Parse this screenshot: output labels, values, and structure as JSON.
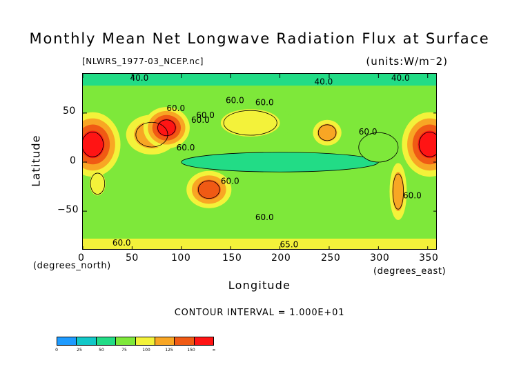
{
  "chart_data": {
    "type": "heatmap",
    "title": "Monthly Mean Net Longwave Radiation Flux at Surface",
    "file_label": "[NLWRS_1977-03_NCEP.nc]",
    "units_label": "(units:W/m⁻2)",
    "xlabel": "Longitude",
    "ylabel": "Latitude",
    "x_unit_label": "(degrees_east)",
    "y_unit_label": "(degrees_north)",
    "xlim": [
      0,
      360
    ],
    "ylim": [
      -90,
      90
    ],
    "x_ticks": [
      "0",
      "50",
      "100",
      "150",
      "200",
      "250",
      "300",
      "350"
    ],
    "y_ticks": [
      "50",
      "0",
      "−50"
    ],
    "contour_interval_text": "CONTOUR INTERVAL = 1.000E+01",
    "contour_labels": [
      {
        "text": "40.0",
        "lon": 48,
        "lat": 83
      },
      {
        "text": "40.0",
        "lon": 235,
        "lat": 79
      },
      {
        "text": "40.0",
        "lon": 313,
        "lat": 83
      },
      {
        "text": "60.0",
        "lon": 85,
        "lat": 52
      },
      {
        "text": "60.0",
        "lon": 145,
        "lat": 60
      },
      {
        "text": "60.0",
        "lon": 175,
        "lat": 58
      },
      {
        "text": "60.0",
        "lon": 115,
        "lat": 45
      },
      {
        "text": "60.0",
        "lon": 110,
        "lat": 40
      },
      {
        "text": "60.0",
        "lon": 95,
        "lat": 12
      },
      {
        "text": "60.0",
        "lon": 280,
        "lat": 28
      },
      {
        "text": "60.0",
        "lon": 140,
        "lat": -22
      },
      {
        "text": "60.0",
        "lon": 325,
        "lat": -37
      },
      {
        "text": "60.0",
        "lon": 175,
        "lat": -59
      },
      {
        "text": "60.0",
        "lon": 30,
        "lat": -85
      },
      {
        "text": "65.0",
        "lon": 200,
        "lat": -87
      }
    ],
    "colorbar": {
      "levels": [
        "0",
        "25",
        "50",
        "75",
        "100",
        "125",
        "150",
        "∞"
      ],
      "colors": [
        "#1e9bff",
        "#12c8c8",
        "#22dc86",
        "#7ee83a",
        "#f3f23a",
        "#f8a624",
        "#f05a14",
        "#ff1414"
      ]
    },
    "field_regions": [
      {
        "lon": 10,
        "lat": 18,
        "rx": 12,
        "ry": 14,
        "level": 7
      },
      {
        "lon": 352,
        "lat": 18,
        "rx": 12,
        "ry": 14,
        "level": 7
      },
      {
        "lon": 85,
        "lat": 35,
        "rx": 10,
        "ry": 9,
        "level": 7
      },
      {
        "lon": 70,
        "lat": 28,
        "rx": 18,
        "ry": 14,
        "level": 5
      },
      {
        "lon": 128,
        "lat": -28,
        "rx": 12,
        "ry": 10,
        "level": 6
      },
      {
        "lon": 248,
        "lat": 30,
        "rx": 10,
        "ry": 9,
        "level": 5
      },
      {
        "lon": 320,
        "lat": -30,
        "rx": 6,
        "ry": 20,
        "level": 5
      },
      {
        "lon": 15,
        "lat": -22,
        "rx": 8,
        "ry": 12,
        "level": 4
      },
      {
        "lon": 200,
        "lat": 0,
        "rx": 100,
        "ry": 10,
        "level": 1
      },
      {
        "lon": 170,
        "lat": 40,
        "rx": 30,
        "ry": 14,
        "level": 4
      },
      {
        "lon": 300,
        "lat": 15,
        "rx": 20,
        "ry": 15,
        "level": 2
      }
    ]
  }
}
